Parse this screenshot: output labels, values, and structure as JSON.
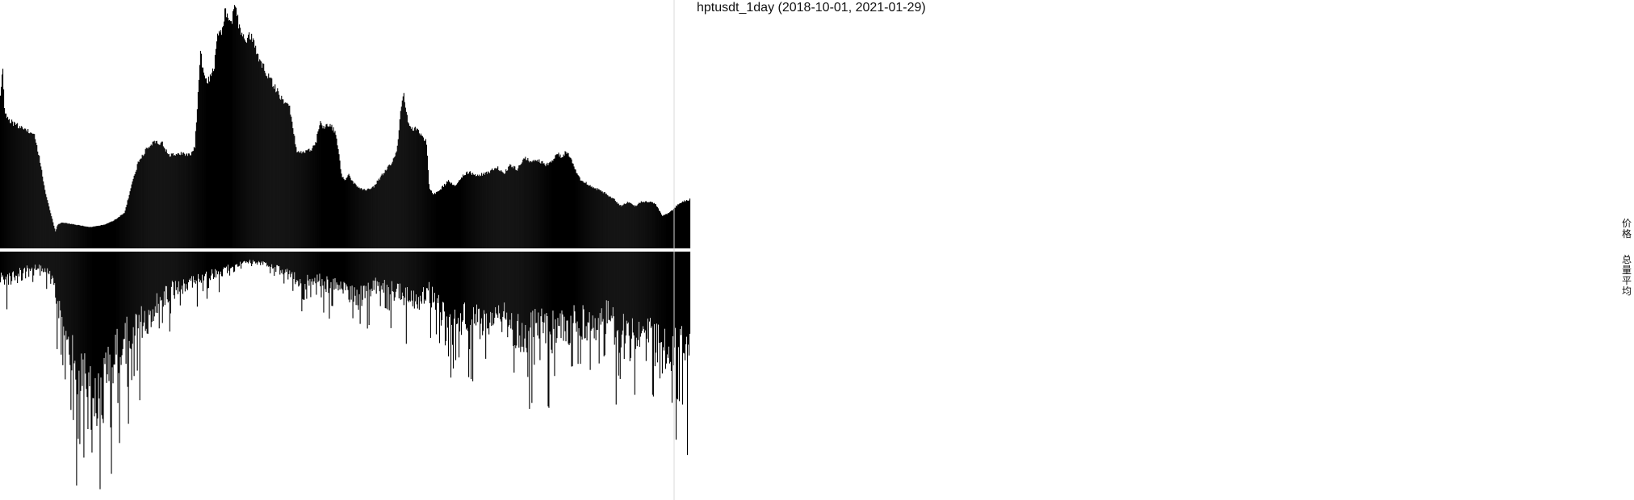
{
  "title": "hptusdt_1day (2018-10-01, 2021-01-29)",
  "right_labels": {
    "price": "价格",
    "volume_avg": "总量平均"
  },
  "colors": {
    "bars": "#000000",
    "background": "#ffffff",
    "divider": "#d8d8d8"
  },
  "chart_data": [
    {
      "type": "area",
      "panel": "price",
      "title": "hptusdt_1day (2018-10-01, 2021-01-29)",
      "y_label": "价格",
      "x_range": [
        "2018-10-01",
        "2021-01-29"
      ],
      "points": [
        [
          0.0,
          0.62
        ],
        [
          0.003,
          0.75
        ],
        [
          0.006,
          0.56
        ],
        [
          0.012,
          0.51
        ],
        [
          0.025,
          0.49
        ],
        [
          0.04,
          0.47
        ],
        [
          0.05,
          0.44
        ],
        [
          0.058,
          0.33
        ],
        [
          0.064,
          0.22
        ],
        [
          0.072,
          0.12
        ],
        [
          0.08,
          0.03
        ],
        [
          0.083,
          0.06
        ],
        [
          0.09,
          0.07
        ],
        [
          0.11,
          0.06
        ],
        [
          0.13,
          0.05
        ],
        [
          0.15,
          0.06
        ],
        [
          0.165,
          0.08
        ],
        [
          0.18,
          0.11
        ],
        [
          0.192,
          0.25
        ],
        [
          0.2,
          0.33
        ],
        [
          0.215,
          0.4
        ],
        [
          0.225,
          0.42
        ],
        [
          0.235,
          0.41
        ],
        [
          0.245,
          0.36
        ],
        [
          0.26,
          0.37
        ],
        [
          0.275,
          0.36
        ],
        [
          0.282,
          0.4
        ],
        [
          0.286,
          0.58
        ],
        [
          0.29,
          0.82
        ],
        [
          0.295,
          0.7
        ],
        [
          0.3,
          0.67
        ],
        [
          0.31,
          0.74
        ],
        [
          0.315,
          0.9
        ],
        [
          0.32,
          0.88
        ],
        [
          0.326,
          0.98
        ],
        [
          0.335,
          0.93
        ],
        [
          0.34,
          1.0
        ],
        [
          0.348,
          0.9
        ],
        [
          0.355,
          0.86
        ],
        [
          0.362,
          0.88
        ],
        [
          0.368,
          0.85
        ],
        [
          0.375,
          0.78
        ],
        [
          0.385,
          0.72
        ],
        [
          0.395,
          0.67
        ],
        [
          0.405,
          0.62
        ],
        [
          0.415,
          0.58
        ],
        [
          0.42,
          0.56
        ],
        [
          0.425,
          0.47
        ],
        [
          0.43,
          0.37
        ],
        [
          0.44,
          0.38
        ],
        [
          0.45,
          0.38
        ],
        [
          0.458,
          0.42
        ],
        [
          0.463,
          0.5
        ],
        [
          0.47,
          0.48
        ],
        [
          0.478,
          0.5
        ],
        [
          0.485,
          0.46
        ],
        [
          0.49,
          0.39
        ],
        [
          0.495,
          0.27
        ],
        [
          0.5,
          0.25
        ],
        [
          0.505,
          0.28
        ],
        [
          0.512,
          0.24
        ],
        [
          0.52,
          0.22
        ],
        [
          0.53,
          0.21
        ],
        [
          0.54,
          0.22
        ],
        [
          0.55,
          0.26
        ],
        [
          0.56,
          0.3
        ],
        [
          0.57,
          0.34
        ],
        [
          0.576,
          0.4
        ],
        [
          0.58,
          0.55
        ],
        [
          0.585,
          0.62
        ],
        [
          0.588,
          0.55
        ],
        [
          0.595,
          0.47
        ],
        [
          0.605,
          0.48
        ],
        [
          0.612,
          0.44
        ],
        [
          0.618,
          0.42
        ],
        [
          0.622,
          0.22
        ],
        [
          0.628,
          0.19
        ],
        [
          0.64,
          0.22
        ],
        [
          0.65,
          0.25
        ],
        [
          0.66,
          0.23
        ],
        [
          0.67,
          0.27
        ],
        [
          0.68,
          0.29
        ],
        [
          0.69,
          0.27
        ],
        [
          0.7,
          0.28
        ],
        [
          0.71,
          0.29
        ],
        [
          0.72,
          0.31
        ],
        [
          0.73,
          0.28
        ],
        [
          0.74,
          0.32
        ],
        [
          0.75,
          0.3
        ],
        [
          0.76,
          0.35
        ],
        [
          0.77,
          0.33
        ],
        [
          0.78,
          0.34
        ],
        [
          0.79,
          0.32
        ],
        [
          0.8,
          0.33
        ],
        [
          0.808,
          0.37
        ],
        [
          0.815,
          0.35
        ],
        [
          0.82,
          0.38
        ],
        [
          0.825,
          0.36
        ],
        [
          0.832,
          0.31
        ],
        [
          0.84,
          0.26
        ],
        [
          0.85,
          0.24
        ],
        [
          0.86,
          0.22
        ],
        [
          0.87,
          0.21
        ],
        [
          0.88,
          0.19
        ],
        [
          0.89,
          0.17
        ],
        [
          0.9,
          0.14
        ],
        [
          0.91,
          0.16
        ],
        [
          0.92,
          0.14
        ],
        [
          0.93,
          0.16
        ],
        [
          0.94,
          0.16
        ],
        [
          0.95,
          0.15
        ],
        [
          0.96,
          0.1
        ],
        [
          0.97,
          0.11
        ],
        [
          0.98,
          0.14
        ],
        [
          0.99,
          0.16
        ],
        [
          1.0,
          0.17
        ]
      ]
    },
    {
      "type": "bar",
      "panel": "volume",
      "y_label": "总量平均",
      "x_range": [
        "2018-10-01",
        "2021-01-29"
      ],
      "points": [
        [
          0.0,
          0.13
        ],
        [
          0.01,
          0.15
        ],
        [
          0.025,
          0.1
        ],
        [
          0.04,
          0.08
        ],
        [
          0.055,
          0.07
        ],
        [
          0.07,
          0.1
        ],
        [
          0.08,
          0.22
        ],
        [
          0.09,
          0.38
        ],
        [
          0.1,
          0.52
        ],
        [
          0.11,
          0.62
        ],
        [
          0.12,
          0.7
        ],
        [
          0.13,
          0.78
        ],
        [
          0.135,
          0.93
        ],
        [
          0.14,
          0.85
        ],
        [
          0.15,
          0.78
        ],
        [
          0.16,
          0.6
        ],
        [
          0.17,
          0.52
        ],
        [
          0.18,
          0.48
        ],
        [
          0.19,
          0.44
        ],
        [
          0.2,
          0.4
        ],
        [
          0.21,
          0.37
        ],
        [
          0.22,
          0.31
        ],
        [
          0.23,
          0.26
        ],
        [
          0.24,
          0.22
        ],
        [
          0.26,
          0.18
        ],
        [
          0.28,
          0.15
        ],
        [
          0.3,
          0.12
        ],
        [
          0.32,
          0.1
        ],
        [
          0.34,
          0.06
        ],
        [
          0.36,
          0.04
        ],
        [
          0.38,
          0.05
        ],
        [
          0.4,
          0.08
        ],
        [
          0.42,
          0.12
        ],
        [
          0.44,
          0.16
        ],
        [
          0.46,
          0.14
        ],
        [
          0.48,
          0.18
        ],
        [
          0.5,
          0.19
        ],
        [
          0.52,
          0.25
        ],
        [
          0.54,
          0.17
        ],
        [
          0.56,
          0.19
        ],
        [
          0.58,
          0.22
        ],
        [
          0.6,
          0.27
        ],
        [
          0.62,
          0.2
        ],
        [
          0.64,
          0.33
        ],
        [
          0.65,
          0.46
        ],
        [
          0.66,
          0.37
        ],
        [
          0.68,
          0.33
        ],
        [
          0.7,
          0.38
        ],
        [
          0.72,
          0.3
        ],
        [
          0.74,
          0.4
        ],
        [
          0.76,
          0.45
        ],
        [
          0.78,
          0.36
        ],
        [
          0.8,
          0.43
        ],
        [
          0.82,
          0.4
        ],
        [
          0.84,
          0.38
        ],
        [
          0.86,
          0.41
        ],
        [
          0.88,
          0.34
        ],
        [
          0.9,
          0.44
        ],
        [
          0.92,
          0.49
        ],
        [
          0.94,
          0.46
        ],
        [
          0.96,
          0.56
        ],
        [
          0.98,
          0.5
        ],
        [
          1.0,
          0.55
        ]
      ]
    }
  ]
}
